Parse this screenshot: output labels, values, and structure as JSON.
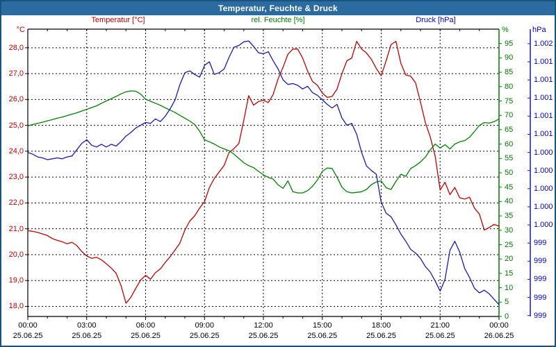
{
  "window": {
    "title": "Temperatur, Feuchte & Druck"
  },
  "legend": {
    "temperature": "Temperatur [°C]",
    "humidity": "rel. Feuchte [%]",
    "pressure": "Druck [hPa]"
  },
  "units": {
    "temperature": "°C",
    "humidity": "%",
    "pressure": "hPa"
  },
  "colors": {
    "titlebar_bg": "#2b6b9f",
    "window_border": "#16537e",
    "temperature": "#c00000",
    "humidity": "#008000",
    "humidity_axis": "#007800",
    "pressure": "#1818b4",
    "pressure_label": "#0000cc",
    "grid": "#000000"
  },
  "chart_data": {
    "type": "line",
    "title": "Temperatur, Feuchte & Druck",
    "grid": "dashed, horizontal per 1°C, vertical per 3h",
    "x_axis": {
      "start_hour": 0,
      "end_hour": 24,
      "major_tick_hours": 3,
      "minor_tick_hours": 1,
      "tick_labels": [
        {
          "time": "00:00",
          "date": "25.06.25"
        },
        {
          "time": "03:00",
          "date": "25.06.25"
        },
        {
          "time": "06:00",
          "date": "25.06.25"
        },
        {
          "time": "09:00",
          "date": "25.06.25"
        },
        {
          "time": "12:00",
          "date": "25.06.25"
        },
        {
          "time": "15:00",
          "date": "25.06.25"
        },
        {
          "time": "18:00",
          "date": "25.06.25"
        },
        {
          "time": "21:00",
          "date": "25.06.25"
        },
        {
          "time": "00:00",
          "date": "26.06.25"
        }
      ]
    },
    "axes": {
      "temperature": {
        "label": "Temperatur [°C]",
        "unit": "°C",
        "side": "left",
        "min": 17.61,
        "max": 28.72,
        "ticks": [
          28,
          27,
          26,
          25,
          24,
          23,
          22,
          21,
          20,
          19,
          18
        ],
        "tick_label_style": "decimal-comma, e.g. 28,0"
      },
      "humidity": {
        "label": "rel. Feuchte [%]",
        "unit": "%",
        "side": "right-inner",
        "min": 0,
        "max": 100,
        "ticks": [
          95,
          90,
          85,
          80,
          75,
          70,
          65,
          60,
          55,
          50,
          45,
          40,
          35,
          30,
          25,
          20,
          15,
          10,
          5,
          0
        ]
      },
      "pressure": {
        "label": "Druck [hPa]",
        "unit": "hPa",
        "side": "right-outer",
        "min": 998.99,
        "max": 1002.16,
        "tick_values": [
          1002.0,
          1001.8,
          1001.6,
          1001.4,
          1001.2,
          1001.0,
          1000.8,
          1000.6,
          1000.4,
          1000.2,
          1000.0,
          999.8,
          999.6,
          999.4,
          999.2,
          999.0
        ],
        "tick_labels": [
          "1.002",
          "1.001",
          "1.001",
          "1.001",
          "1.001",
          "1.001",
          "1.000",
          "1.000",
          "1.000",
          "1.000",
          "1.000",
          "999",
          "999",
          "999",
          "999",
          "999"
        ]
      }
    },
    "sample_step_hours": 0.25,
    "series": [
      {
        "name": "Temperatur",
        "axis": "temperature",
        "color": "#c00000",
        "values": [
          20.93,
          20.9,
          20.86,
          20.8,
          20.74,
          20.62,
          20.55,
          20.5,
          20.42,
          20.48,
          20.35,
          20.12,
          19.95,
          19.86,
          19.9,
          19.8,
          19.65,
          19.48,
          19.28,
          18.8,
          18.12,
          18.35,
          18.7,
          19.02,
          19.2,
          19.05,
          19.3,
          19.45,
          19.7,
          19.92,
          20.18,
          20.45,
          20.95,
          21.3,
          21.5,
          21.8,
          22.05,
          22.6,
          22.95,
          23.2,
          23.45,
          23.95,
          24.1,
          24.3,
          25.2,
          26.15,
          25.78,
          25.92,
          25.97,
          25.88,
          26.2,
          26.8,
          27.25,
          27.75,
          27.95,
          27.95,
          27.6,
          27.1,
          26.7,
          26.55,
          26.25,
          26.08,
          26.12,
          26.4,
          27.0,
          27.5,
          27.6,
          28.25,
          27.95,
          27.8,
          27.55,
          27.2,
          26.92,
          27.5,
          28.12,
          28.25,
          27.4,
          26.95,
          26.9,
          26.65,
          25.9,
          25.1,
          24.55,
          23.8,
          22.5,
          22.8,
          22.32,
          22.6,
          22.2,
          22.15,
          22.22,
          21.8,
          21.57,
          20.95,
          21.05,
          21.17,
          21.1
        ]
      },
      {
        "name": "rel. Feuchte",
        "axis": "humidity",
        "color": "#008000",
        "values": [
          66.3,
          66.8,
          67.2,
          67.6,
          68.1,
          68.5,
          69.0,
          69.4,
          69.9,
          70.4,
          70.9,
          71.5,
          72.1,
          72.7,
          73.3,
          74.2,
          75.0,
          75.8,
          76.6,
          77.5,
          78.2,
          78.5,
          78.4,
          77.4,
          75.6,
          74.9,
          74.2,
          73.5,
          72.6,
          71.8,
          71.0,
          70.0,
          69.0,
          68.0,
          66.8,
          64.5,
          61.5,
          60.8,
          60.0,
          59.0,
          58.3,
          57.7,
          56.5,
          55.0,
          53.5,
          52.5,
          51.8,
          50.5,
          49.3,
          48.4,
          47.8,
          45.8,
          44.6,
          47.2,
          43.4,
          43.0,
          43.0,
          43.8,
          45.3,
          47.5,
          50.5,
          51.7,
          51.5,
          48.5,
          45.0,
          43.4,
          43.0,
          43.2,
          43.4,
          44.2,
          45.9,
          46.8,
          47.2,
          44.8,
          44.2,
          47.0,
          49.5,
          48.8,
          51.5,
          52.5,
          53.8,
          55.5,
          58.0,
          60.0,
          58.6,
          59.8,
          58.3,
          60.0,
          60.8,
          61.2,
          62.4,
          64.4,
          66.5,
          67.5,
          67.3,
          67.8,
          68.7
        ]
      },
      {
        "name": "Druck",
        "axis": "pressure",
        "color": "#1818b4",
        "values": [
          1000.8,
          1000.78,
          1000.75,
          1000.74,
          1000.72,
          1000.73,
          1000.74,
          1000.73,
          1000.75,
          1000.76,
          1000.83,
          1000.9,
          1000.94,
          1000.88,
          1000.86,
          1000.89,
          1000.86,
          1000.89,
          1000.87,
          1000.92,
          1000.98,
          1001.02,
          1001.07,
          1001.1,
          1001.13,
          1001.12,
          1001.17,
          1001.14,
          1001.2,
          1001.28,
          1001.38,
          1001.55,
          1001.68,
          1001.7,
          1001.66,
          1001.63,
          1001.76,
          1001.8,
          1001.66,
          1001.68,
          1001.72,
          1001.85,
          1001.96,
          1001.98,
          1002.02,
          1002.03,
          1001.97,
          1001.9,
          1001.89,
          1001.91,
          1001.81,
          1001.72,
          1001.6,
          1001.55,
          1001.56,
          1001.54,
          1001.5,
          1001.53,
          1001.46,
          1001.43,
          1001.38,
          1001.33,
          1001.29,
          1001.33,
          1001.18,
          1001.1,
          1001.12,
          1001.0,
          1000.8,
          1000.65,
          1000.6,
          1000.56,
          1000.25,
          1000.13,
          1000.09,
          1000.0,
          999.9,
          999.82,
          999.73,
          999.69,
          999.63,
          999.54,
          999.48,
          999.38,
          999.27,
          999.4,
          999.72,
          999.82,
          999.7,
          999.52,
          999.42,
          999.3,
          999.25,
          999.28,
          999.24,
          999.18,
          999.12
        ]
      }
    ]
  }
}
